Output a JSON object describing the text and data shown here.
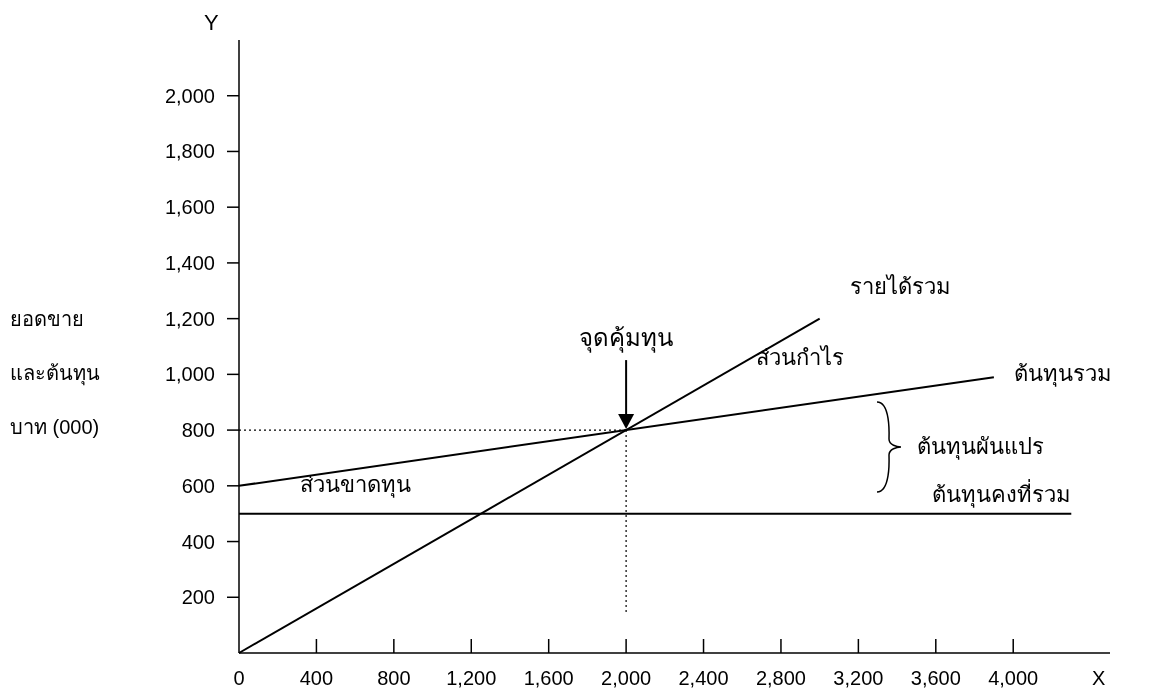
{
  "chart_data": {
    "type": "line",
    "xlabel": "X",
    "ylabel": "ยอดขาย\nและต้นทุน\nบาท (000)",
    "xlim": [
      0,
      4500
    ],
    "ylim": [
      0,
      2200
    ],
    "xticks": [
      0,
      400,
      800,
      {
        "value": 1200,
        "label": "1,200"
      },
      {
        "value": 1600,
        "label": "1,600"
      },
      {
        "value": 2000,
        "label": "2,000"
      },
      {
        "value": 2400,
        "label": "2,400"
      },
      {
        "value": 2800,
        "label": "2,800"
      },
      {
        "value": 3200,
        "label": "3,200"
      },
      {
        "value": 3600,
        "label": "3,600"
      },
      {
        "value": 4000,
        "label": "4,000"
      }
    ],
    "yticks": [
      200,
      400,
      600,
      800,
      {
        "value": 1000,
        "label": "1,000"
      },
      {
        "value": 1200,
        "label": "1,200"
      },
      {
        "value": 1400,
        "label": "1,400"
      },
      {
        "value": 1600,
        "label": "1,600"
      },
      {
        "value": 1800,
        "label": "1,800"
      },
      {
        "value": 2000,
        "label": "2,000"
      }
    ],
    "series": [
      {
        "name": "รายได้รวม",
        "color": "#000000",
        "x": [
          0,
          3000
        ],
        "values": [
          0,
          1200
        ]
      },
      {
        "name": "ต้นทุนรวม",
        "color": "#000000",
        "x": [
          0,
          3900
        ],
        "values": [
          600,
          990
        ]
      },
      {
        "name": "ต้นทุนคงที่รวม",
        "color": "#000000",
        "x": [
          0,
          4300
        ],
        "values": [
          500,
          500
        ]
      }
    ],
    "ref_lines": [
      {
        "axis": "x",
        "value": 2000,
        "line_style": "dotted"
      },
      {
        "axis": "y",
        "value": 800,
        "line_style": "dotted"
      }
    ],
    "annotations": [
      "จุดคุ้มทุน",
      "ส่วนกำไร",
      "ส่วนขาดทุน",
      "ต้นทุนผันแปร",
      "Y"
    ],
    "marker": "none",
    "line_style": "solid",
    "grid": false
  }
}
